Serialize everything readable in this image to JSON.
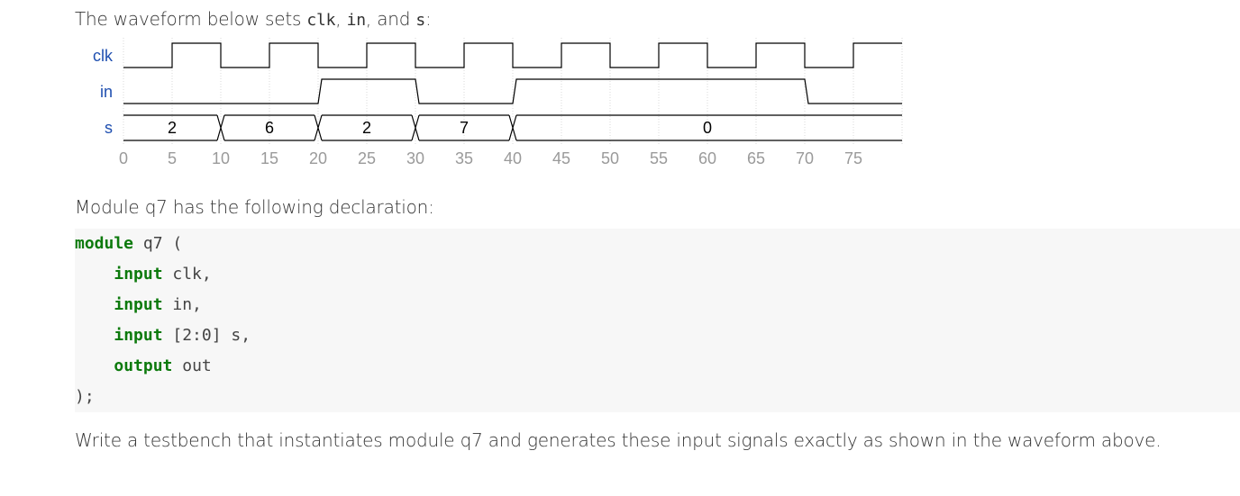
{
  "intro": {
    "before": "The waveform below sets ",
    "sig1": "clk",
    "sep1": ", ",
    "sig2": "in",
    "sep2": ", and ",
    "sig3": "s",
    "after": ":"
  },
  "waveform": {
    "labels": [
      "clk",
      "in",
      "s"
    ],
    "time_ticks": [
      "0",
      "5",
      "10",
      "15",
      "20",
      "25",
      "30",
      "35",
      "40",
      "45",
      "50",
      "55",
      "60",
      "65",
      "70",
      "75"
    ],
    "clk_edges": [
      5,
      10,
      15,
      20,
      25,
      30,
      35,
      40,
      45,
      50,
      55,
      60,
      65,
      70,
      75
    ],
    "clk_initial": 0,
    "in_transitions": [
      {
        "t": 20,
        "v": 1
      },
      {
        "t": 30,
        "v": 0
      },
      {
        "t": 40,
        "v": 1
      },
      {
        "t": 70,
        "v": 0
      }
    ],
    "s_segments": [
      {
        "start": 0,
        "end": 10,
        "value": "2"
      },
      {
        "start": 10,
        "end": 20,
        "value": "6"
      },
      {
        "start": 20,
        "end": 30,
        "value": "2"
      },
      {
        "start": 30,
        "end": 40,
        "value": "7"
      },
      {
        "start": 40,
        "end": 80,
        "value": "0"
      }
    ],
    "end_time": 80
  },
  "module_intro": {
    "before": "Module ",
    "name": "q7",
    "after": " has the following declaration:"
  },
  "code": {
    "line1_kw": "module",
    "line1_rest": " q7 (",
    "line2_kw": "input",
    "line2_rest": " clk,",
    "line3_kw": "input",
    "line3_rest": " in,",
    "line4_kw": "input",
    "line4_rest": " [2:0] s,",
    "line5_kw": "output",
    "line5_rest": " out",
    "line6": ");"
  },
  "task": {
    "before": "Write a testbench that instantiates module ",
    "name": "q7",
    "after": " and generates these input signals exactly as shown in the waveform above."
  }
}
